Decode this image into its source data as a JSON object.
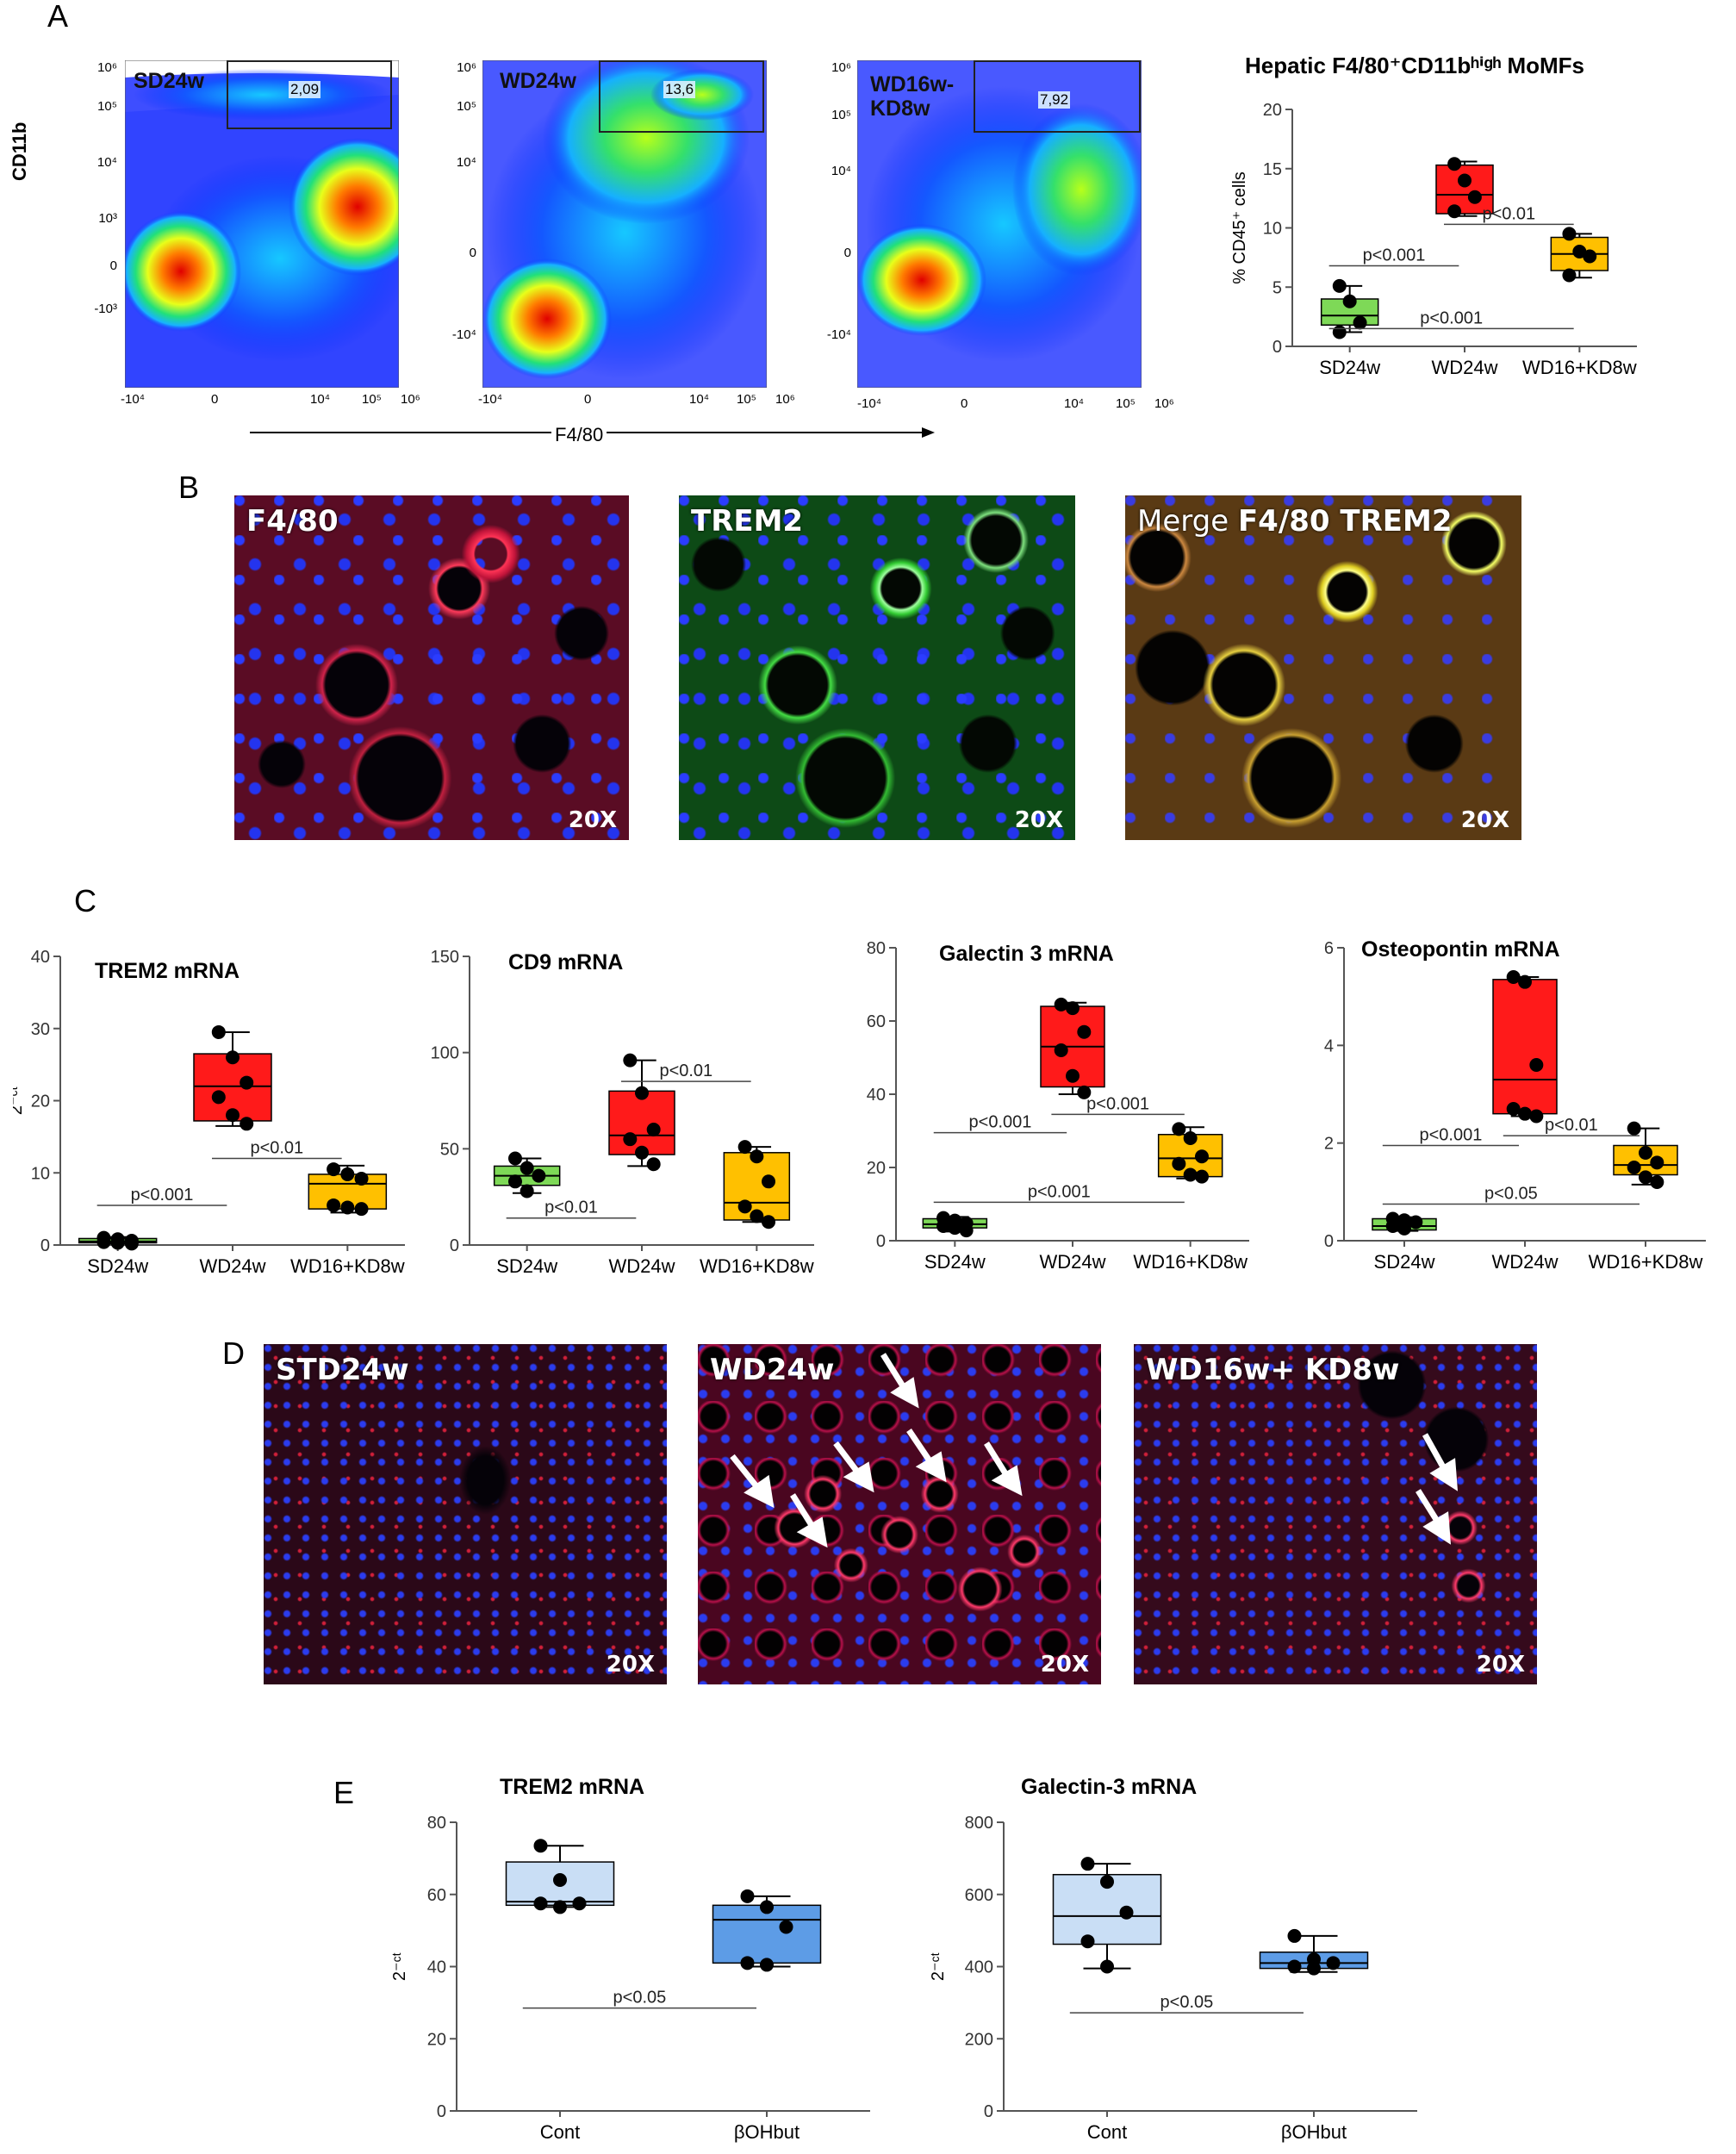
{
  "panels": {
    "A": "A",
    "B": "B",
    "C": "C",
    "D": "D",
    "E": "E"
  },
  "panelA": {
    "yaxis": "CD11b",
    "xaxis": "F4/80",
    "plots": [
      {
        "name": "SD24w",
        "name2": "",
        "gate": "2,09"
      },
      {
        "name": "WD24w",
        "name2": "",
        "gate": "13,6"
      },
      {
        "name": "WD16w-",
        "name2": "KD8w",
        "gate": "7,92"
      }
    ],
    "yticks_a": [
      "10⁶",
      "10⁵",
      "10⁴",
      "10³",
      "0",
      "-10³"
    ],
    "yticks_b": [
      "10⁶",
      "10⁵",
      "10⁴",
      "0",
      "-10⁴"
    ],
    "xticks": [
      "-10⁴",
      "0",
      "10⁴",
      "10⁵",
      "10⁶"
    ]
  },
  "panelB": [
    {
      "label": "F4/80",
      "label_pre": "",
      "mag": "20X"
    },
    {
      "label": "TREM2",
      "label_pre": "",
      "mag": "20X"
    },
    {
      "label": "F4/80 TREM2",
      "label_pre": "Merge ",
      "mag": "20X"
    }
  ],
  "panelD": [
    {
      "label": "STD24w",
      "mag": "20X"
    },
    {
      "label": "WD24w",
      "mag": "20X"
    },
    {
      "label": "WD16w+ KD8w",
      "mag": "20X"
    }
  ],
  "chart_data": [
    {
      "id": "A-box",
      "type": "box",
      "title": "Hepatic F4/80⁺CD11bʰⁱᵍʰ MoMFs",
      "ylabel": "% CD45⁺ cells",
      "ylim": [
        0,
        20
      ],
      "yticks": [
        0,
        5,
        10,
        15,
        20
      ],
      "categories": [
        "SD24w",
        "WD24w",
        "WD16+KD8w"
      ],
      "colors": [
        "#7ed957",
        "#ff1a1a",
        "#ffc000"
      ],
      "boxes": [
        {
          "min": 1.2,
          "q1": 1.8,
          "median": 2.6,
          "q3": 4.0,
          "max": 5.1,
          "points": [
            5.1,
            3.8,
            2.0,
            1.2
          ]
        },
        {
          "min": 11.0,
          "q1": 11.2,
          "median": 12.8,
          "q3": 15.3,
          "max": 15.6,
          "points": [
            15.4,
            14.0,
            12.6,
            11.4
          ]
        },
        {
          "min": 5.8,
          "q1": 6.4,
          "median": 7.8,
          "q3": 9.2,
          "max": 9.5,
          "points": [
            9.5,
            8.0,
            7.6,
            6.0
          ]
        }
      ],
      "pvalues": [
        {
          "label": "p<0.001",
          "from": 0,
          "to": 1,
          "y": 6.8
        },
        {
          "label": "p<0.01",
          "from": 1,
          "to": 2,
          "y": 10.3
        },
        {
          "label": "p<0.001",
          "from": 0,
          "to": 2,
          "y": 1.5
        }
      ]
    },
    {
      "id": "C1",
      "type": "box",
      "title": "TREM2 mRNA",
      "ylabel": "2⁻ᶜᵗ",
      "ylim": [
        0,
        40
      ],
      "yticks": [
        0,
        10,
        20,
        30,
        40
      ],
      "categories": [
        "SD24w",
        "WD24w",
        "WD16+KD8w"
      ],
      "colors": [
        "#7ed957",
        "#ff1a1a",
        "#ffc000"
      ],
      "boxes": [
        {
          "min": 0.2,
          "q1": 0.3,
          "median": 0.5,
          "q3": 0.9,
          "max": 1.1,
          "points": [
            1.0,
            0.8,
            0.6,
            0.4,
            0.3,
            0.2
          ]
        },
        {
          "min": 16.5,
          "q1": 17.2,
          "median": 22.0,
          "q3": 26.5,
          "max": 29.5,
          "points": [
            29.5,
            26.0,
            22.5,
            20.5,
            18.0,
            16.8
          ]
        },
        {
          "min": 4.5,
          "q1": 5.0,
          "median": 8.5,
          "q3": 9.8,
          "max": 11.0,
          "points": [
            10.5,
            9.8,
            9.2,
            5.5,
            5.2,
            5.0
          ]
        }
      ],
      "pvalues": [
        {
          "label": "p<0.001",
          "from": 0,
          "to": 1,
          "y": 5.5
        },
        {
          "label": "p<0.01",
          "from": 1,
          "to": 2,
          "y": 12.0
        }
      ]
    },
    {
      "id": "C2",
      "type": "box",
      "title": "CD9 mRNA",
      "ylabel": "",
      "ylim": [
        0,
        150
      ],
      "yticks": [
        0,
        50,
        100,
        150
      ],
      "categories": [
        "SD24w",
        "WD24w",
        "WD16+KD8w"
      ],
      "colors": [
        "#7ed957",
        "#ff1a1a",
        "#ffc000"
      ],
      "boxes": [
        {
          "min": 27,
          "q1": 31,
          "median": 36,
          "q3": 41,
          "max": 45,
          "points": [
            45,
            40,
            36,
            33,
            28
          ]
        },
        {
          "min": 41,
          "q1": 47,
          "median": 57,
          "q3": 80,
          "max": 96,
          "points": [
            96,
            79,
            60,
            55,
            48,
            42
          ]
        },
        {
          "min": 12,
          "q1": 13,
          "median": 22,
          "q3": 48,
          "max": 51,
          "points": [
            51,
            46,
            33,
            20,
            15,
            12
          ]
        }
      ],
      "pvalues": [
        {
          "label": "p<0.01",
          "from": 0,
          "to": 1,
          "y": 14
        },
        {
          "label": "p<0.01",
          "from": 1,
          "to": 2,
          "y": 85
        }
      ]
    },
    {
      "id": "C3",
      "type": "box",
      "title": "Galectin 3 mRNA",
      "ylabel": "",
      "ylim": [
        0,
        80
      ],
      "yticks": [
        0,
        20,
        40,
        60,
        80
      ],
      "categories": [
        "SD24w",
        "WD24w",
        "WD16+KD8w"
      ],
      "colors": [
        "#7ed957",
        "#ff1a1a",
        "#ffc000"
      ],
      "boxes": [
        {
          "min": 2.5,
          "q1": 3.5,
          "median": 4.5,
          "q3": 6.0,
          "max": 6.5,
          "points": [
            6.2,
            5.5,
            4.8,
            4.0,
            3.5,
            2.8
          ]
        },
        {
          "min": 40,
          "q1": 42,
          "median": 53,
          "q3": 64,
          "max": 65,
          "points": [
            64.5,
            63.5,
            57,
            52,
            45,
            40.5
          ]
        },
        {
          "min": 17,
          "q1": 17.5,
          "median": 22.5,
          "q3": 29,
          "max": 31,
          "points": [
            30.5,
            28,
            23,
            21,
            18,
            17.5
          ]
        }
      ],
      "pvalues": [
        {
          "label": "p<0.001",
          "from": 0,
          "to": 1,
          "y": 29.5
        },
        {
          "label": "p<0.001",
          "from": 1,
          "to": 2,
          "y": 34.5
        },
        {
          "label": "p<0.001",
          "from": 0,
          "to": 2,
          "y": 10.5
        }
      ]
    },
    {
      "id": "C4",
      "type": "box",
      "title": "Osteopontin mRNA",
      "ylabel": "",
      "ylim": [
        0,
        6
      ],
      "yticks": [
        0,
        2,
        4,
        6
      ],
      "categories": [
        "SD24w",
        "WD24w",
        "WD16+KD8w"
      ],
      "colors": [
        "#7ed957",
        "#ff1a1a",
        "#ffc000"
      ],
      "boxes": [
        {
          "min": 0.2,
          "q1": 0.22,
          "median": 0.3,
          "q3": 0.45,
          "max": 0.48,
          "points": [
            0.45,
            0.42,
            0.38,
            0.3,
            0.25
          ]
        },
        {
          "min": 2.55,
          "q1": 2.6,
          "median": 3.3,
          "q3": 5.35,
          "max": 5.4,
          "points": [
            5.4,
            5.3,
            3.6,
            2.7,
            2.6,
            2.55
          ]
        },
        {
          "min": 1.15,
          "q1": 1.35,
          "median": 1.55,
          "q3": 1.95,
          "max": 2.3,
          "points": [
            2.3,
            1.8,
            1.6,
            1.5,
            1.3,
            1.2
          ]
        }
      ],
      "pvalues": [
        {
          "label": "p<0.001",
          "from": 0,
          "to": 1,
          "y": 1.95
        },
        {
          "label": "p<0.01",
          "from": 1,
          "to": 2,
          "y": 2.15
        },
        {
          "label": "p<0.05",
          "from": 0,
          "to": 2,
          "y": 0.75
        }
      ]
    },
    {
      "id": "E1",
      "type": "box",
      "title": "TREM2 mRNA",
      "ylabel": "2⁻ᶜᵗ",
      "ylim": [
        0,
        80
      ],
      "yticks": [
        0,
        20,
        40,
        60,
        80
      ],
      "categories": [
        "Cont",
        "βOHbut"
      ],
      "colors": [
        "#c9def5",
        "#5d9ce6"
      ],
      "boxes": [
        {
          "min": 56.5,
          "q1": 57,
          "median": 58,
          "q3": 69,
          "max": 73.5,
          "points": [
            73.5,
            64,
            57.5,
            57.5,
            56.5
          ]
        },
        {
          "min": 40,
          "q1": 41,
          "median": 53,
          "q3": 57,
          "max": 59.5,
          "points": [
            59.5,
            56.5,
            51,
            41,
            40.5
          ]
        }
      ],
      "pvalues": [
        {
          "label": "p<0.05",
          "from": 0,
          "to": 1,
          "y": 28.5
        }
      ]
    },
    {
      "id": "E2",
      "type": "box",
      "title": "Galectin-3 mRNA",
      "ylabel": "2⁻ᶜᵗ",
      "ylim": [
        0,
        800
      ],
      "yticks": [
        0,
        200,
        400,
        600,
        800
      ],
      "categories": [
        "Cont",
        "βOHbut"
      ],
      "colors": [
        "#c9def5",
        "#5d9ce6"
      ],
      "boxes": [
        {
          "min": 395,
          "q1": 462,
          "median": 540,
          "q3": 655,
          "max": 685,
          "points": [
            685,
            635,
            550,
            470,
            400
          ]
        },
        {
          "min": 385,
          "q1": 395,
          "median": 410,
          "q3": 440,
          "max": 485,
          "points": [
            485,
            420,
            410,
            400,
            395
          ]
        }
      ],
      "pvalues": [
        {
          "label": "p<0.05",
          "from": 0,
          "to": 1,
          "y": 272
        }
      ]
    }
  ]
}
